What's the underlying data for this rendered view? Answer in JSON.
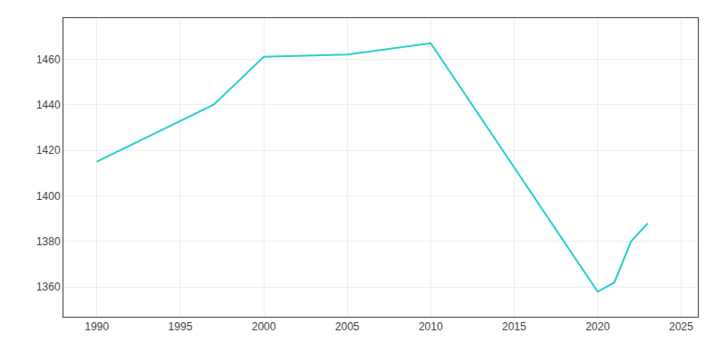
{
  "chart_data": {
    "type": "line",
    "x": [
      1990,
      1997,
      2000,
      2005,
      2010,
      2020,
      2021,
      2022,
      2023
    ],
    "values": [
      1415,
      1440,
      1461,
      1462,
      1467,
      1358,
      1362,
      1380,
      1388
    ],
    "color": "#2acfcf",
    "xlim": [
      1988,
      2026
    ],
    "ylim": [
      1347,
      1478
    ],
    "xticks": [
      1990,
      1995,
      2000,
      2005,
      2010,
      2015,
      2020,
      2025
    ],
    "yticks": [
      1360,
      1380,
      1400,
      1420,
      1440,
      1460
    ],
    "grid": true
  }
}
